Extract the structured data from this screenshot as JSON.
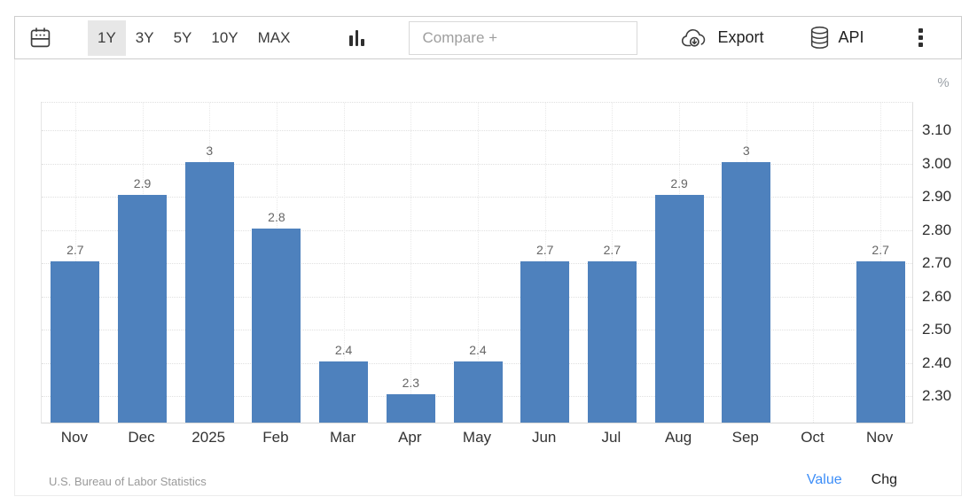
{
  "toolbar": {
    "ranges": [
      {
        "label": "1Y",
        "active": true
      },
      {
        "label": "3Y",
        "active": false
      },
      {
        "label": "5Y",
        "active": false
      },
      {
        "label": "10Y",
        "active": false
      },
      {
        "label": "MAX",
        "active": false
      }
    ],
    "compare_placeholder": "Compare +",
    "export_label": "Export",
    "api_label": "API",
    "icons": [
      "calendar-icon",
      "column-chart-icon",
      "cloud-download-icon",
      "database-icon",
      "kebab-menu-icon"
    ]
  },
  "chart": {
    "unit_label": "%",
    "source": "U.S. Bureau of Labor Statistics",
    "legend": {
      "value_label": "Value",
      "chg_label": "Chg"
    }
  },
  "chart_data": {
    "type": "bar",
    "title": "",
    "categories": [
      "Nov",
      "Dec",
      "2025",
      "Feb",
      "Mar",
      "Apr",
      "May",
      "Jun",
      "Jul",
      "Aug",
      "Sep",
      "Oct",
      "Nov"
    ],
    "values": [
      2.7,
      2.9,
      3,
      2.8,
      2.4,
      2.3,
      2.4,
      2.7,
      2.7,
      2.9,
      3,
      null,
      2.7
    ],
    "data_labels": [
      "2.7",
      "2.9",
      "3",
      "2.8",
      "2.4",
      "2.3",
      "2.4",
      "2.7",
      "2.7",
      "2.9",
      "3",
      "",
      "2.7"
    ],
    "xlabel": "",
    "ylabel": "%",
    "yticks": [
      {
        "label": "2.30",
        "value": 2.3
      },
      {
        "label": "2.40",
        "value": 2.4
      },
      {
        "label": "2.50",
        "value": 2.5
      },
      {
        "label": "2.60",
        "value": 2.6
      },
      {
        "label": "2.70",
        "value": 2.7
      },
      {
        "label": "2.80",
        "value": 2.8
      },
      {
        "label": "2.90",
        "value": 2.9
      },
      {
        "label": "3.00",
        "value": 3.0
      },
      {
        "label": "3.10",
        "value": 3.1
      }
    ],
    "ylim": [
      2.215,
      3.183
    ],
    "grid": true,
    "legend_position": "bottom-right",
    "bar_color": "#4e81bd"
  }
}
